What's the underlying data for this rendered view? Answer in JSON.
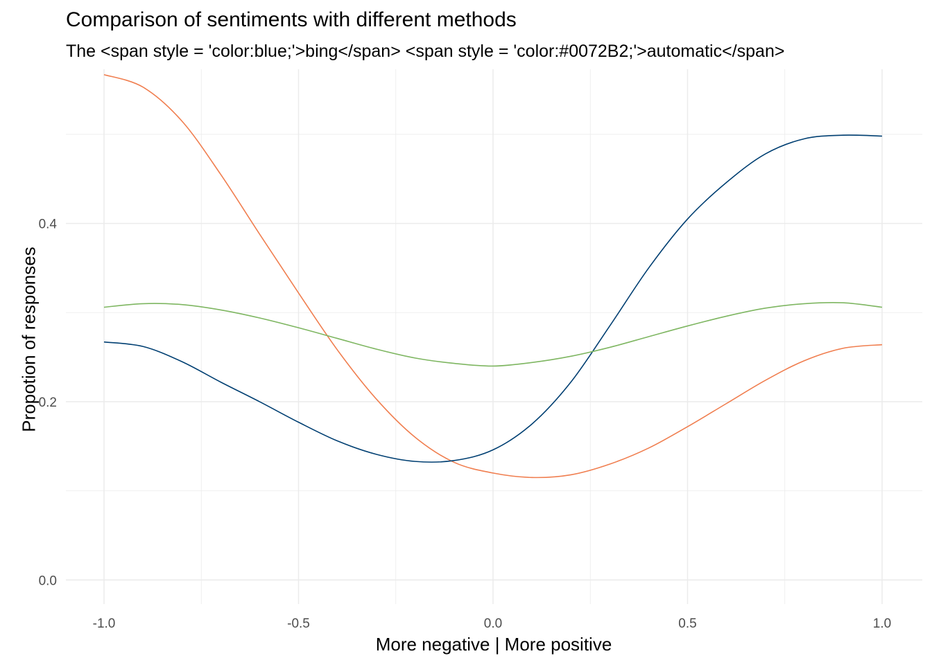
{
  "chart_data": {
    "type": "line",
    "title": "Comparison of sentiments with different methods",
    "subtitle": "The <span style = 'color:blue;'>bing</span> <span style = 'color:#0072B2;'>automatic</span>",
    "xlabel": "More negative | More positive",
    "ylabel": "Propotion of responses",
    "xlim": [
      -1.0,
      1.0
    ],
    "ylim": [
      -0.027,
      0.573
    ],
    "xticks": [
      -1.0,
      -0.5,
      0.0,
      0.5,
      1.0
    ],
    "xtick_labels": [
      "-1.0",
      "-0.5",
      "0.0",
      "0.5",
      "1.0"
    ],
    "yticks": [
      0.0,
      0.2,
      0.4
    ],
    "ytick_labels": [
      "0.0",
      "0.2",
      "0.4"
    ],
    "grid": true,
    "legend": "none",
    "x": [
      -1.0,
      -0.9,
      -0.8,
      -0.7,
      -0.6,
      -0.5,
      -0.4,
      -0.3,
      -0.2,
      -0.1,
      0.0,
      0.1,
      0.2,
      0.3,
      0.4,
      0.5,
      0.6,
      0.7,
      0.8,
      0.9,
      1.0
    ],
    "series": [
      {
        "color": "#F07E4F",
        "values": [
          0.567,
          0.553,
          0.515,
          0.455,
          0.388,
          0.322,
          0.258,
          0.203,
          0.16,
          0.132,
          0.12,
          0.115,
          0.118,
          0.13,
          0.148,
          0.172,
          0.198,
          0.224,
          0.246,
          0.26,
          0.264
        ]
      },
      {
        "color": "#003F72",
        "values": [
          0.267,
          0.262,
          0.245,
          0.222,
          0.2,
          0.177,
          0.156,
          0.141,
          0.133,
          0.134,
          0.146,
          0.175,
          0.222,
          0.285,
          0.35,
          0.405,
          0.446,
          0.478,
          0.495,
          0.499,
          0.498
        ]
      },
      {
        "color": "#7EB661",
        "values": [
          0.306,
          0.31,
          0.309,
          0.303,
          0.294,
          0.283,
          0.271,
          0.259,
          0.249,
          0.243,
          0.24,
          0.244,
          0.251,
          0.261,
          0.273,
          0.285,
          0.296,
          0.305,
          0.31,
          0.311,
          0.306
        ]
      }
    ]
  }
}
